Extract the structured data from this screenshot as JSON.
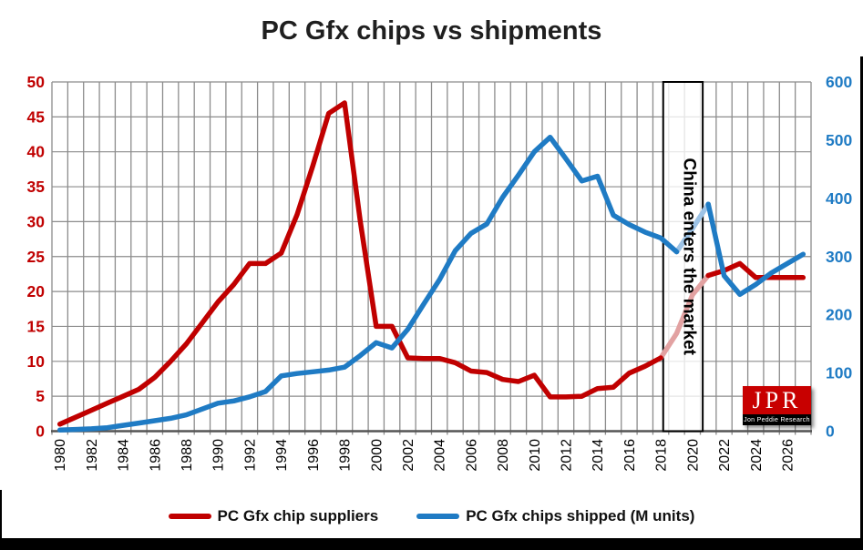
{
  "title": "PC Gfx chips vs shipments",
  "legend": [
    {
      "label": "PC Gfx chip suppliers",
      "color": "#C00000"
    },
    {
      "label": "PC Gfx chips shipped (M units)",
      "color": "#1F7BC4"
    }
  ],
  "logo": {
    "text": "JPR",
    "subtext": "Jon Peddie Research",
    "bg_color": "#C80000"
  },
  "chart_data": {
    "type": "line",
    "x": [
      1980,
      1981,
      1982,
      1983,
      1984,
      1985,
      1986,
      1987,
      1988,
      1989,
      1990,
      1991,
      1992,
      1993,
      1994,
      1995,
      1996,
      1997,
      1998,
      1999,
      2000,
      2001,
      2002,
      2003,
      2004,
      2005,
      2006,
      2007,
      2008,
      2009,
      2010,
      2011,
      2012,
      2013,
      2014,
      2015,
      2016,
      2017,
      2018,
      2019,
      2020,
      2021,
      2022,
      2023,
      2024,
      2025,
      2026,
      2027
    ],
    "x_tick_labels": [
      "1980",
      "1982",
      "1984",
      "1986",
      "1988",
      "1990",
      "1992",
      "1994",
      "1996",
      "1998",
      "2000",
      "2002",
      "2004",
      "2006",
      "2008",
      "2010",
      "2012",
      "2014",
      "2016",
      "2018",
      "2020",
      "2022",
      "2024",
      "2026"
    ],
    "y_left": {
      "min": 0,
      "max": 50,
      "ticks": [
        0,
        5,
        10,
        15,
        20,
        25,
        30,
        35,
        40,
        45,
        50
      ],
      "label_color": "#C00000"
    },
    "y_right": {
      "min": 0,
      "max": 600,
      "ticks": [
        0,
        100,
        200,
        300,
        400,
        500,
        600
      ],
      "label_color": "#1F7BC4"
    },
    "grid": {
      "vertical": "every year",
      "horizontal": "every 5 left-axis units",
      "color": "#8c8c8c"
    },
    "annotation": {
      "text": "China enters the market",
      "from_year": 2018.15,
      "to_year": 2020.65
    },
    "series": [
      {
        "name": "PC Gfx chip suppliers",
        "axis": "left",
        "color": "#C00000",
        "highlight": {
          "from": 2018,
          "to": 2021,
          "color": "#E2A2A2"
        },
        "values": [
          1,
          2,
          3,
          4,
          5,
          6,
          7.7,
          10,
          12.5,
          15.5,
          18.5,
          21,
          24,
          24,
          25.5,
          31,
          38,
          45.5,
          47,
          30,
          15,
          15,
          10.5,
          10.4,
          10.4,
          9.8,
          8.6,
          8.4,
          7.4,
          7.1,
          8,
          4.9,
          4.9,
          5,
          6.1,
          6.3,
          8.3,
          9.3,
          10.5,
          14,
          19.5,
          22.3,
          23,
          24,
          22,
          22,
          22,
          22
        ]
      },
      {
        "name": "PC Gfx chips shipped (M units)",
        "axis": "right",
        "color": "#1F7BC4",
        "highlight": {
          "from": 2019,
          "to": 2021,
          "color": "#9DC3E6"
        },
        "values": [
          2,
          3,
          4,
          6,
          10,
          14,
          18,
          22,
          28,
          38,
          48,
          52,
          59,
          68,
          95,
          99,
          102,
          105,
          110,
          130,
          152,
          143,
          175,
          218,
          260,
          310,
          340,
          356,
          402,
          440,
          480,
          505,
          468,
          430,
          438,
          371,
          355,
          342,
          332,
          308,
          348,
          390,
          267,
          235,
          252,
          272,
          288,
          304
        ]
      }
    ]
  }
}
